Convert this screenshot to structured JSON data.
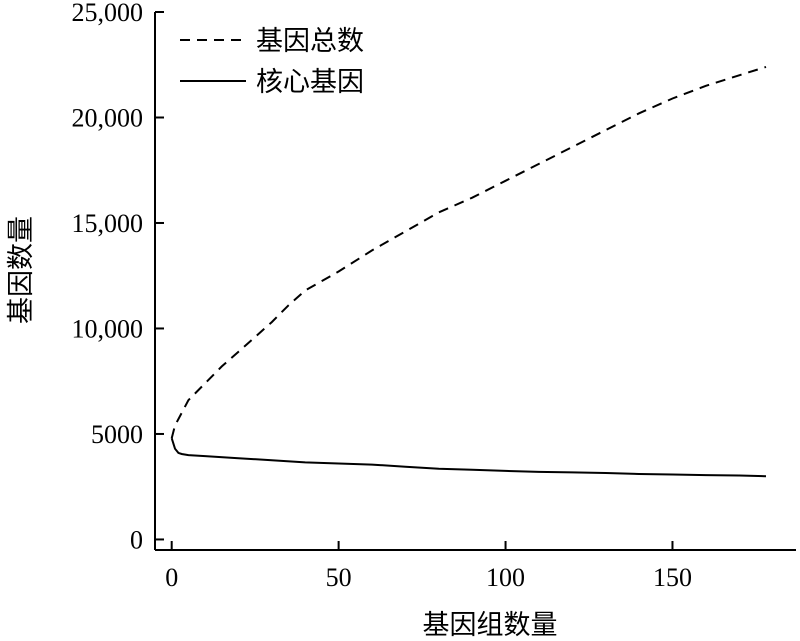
{
  "chart_data": {
    "type": "line",
    "title": "",
    "xlabel": "基因组数量",
    "ylabel": "基因数量",
    "xlim": [
      -5,
      187
    ],
    "ylim": [
      -500,
      25000
    ],
    "x_ticks": [
      0,
      50,
      100,
      150
    ],
    "x_tick_labels": [
      "0",
      "50",
      "100",
      "150"
    ],
    "y_ticks": [
      0,
      5000,
      10000,
      15000,
      20000,
      25000
    ],
    "y_tick_labels": [
      "0",
      "5000",
      "10,000",
      "15,000",
      "20,000",
      "25,000"
    ],
    "grid": false,
    "legend_position": "top-left",
    "series": [
      {
        "name": "基因总数",
        "style": "dashed",
        "color": "#000000",
        "x": [
          0,
          1,
          3,
          5,
          10,
          15,
          20,
          25,
          30,
          35,
          40,
          50,
          60,
          70,
          80,
          90,
          100,
          110,
          120,
          130,
          140,
          150,
          160,
          170,
          178
        ],
        "y": [
          4800,
          5400,
          6000,
          6600,
          7400,
          8200,
          8900,
          9600,
          10300,
          11100,
          11800,
          12700,
          13700,
          14600,
          15500,
          16200,
          17000,
          17800,
          18600,
          19400,
          20200,
          20900,
          21500,
          22000,
          22400
        ]
      },
      {
        "name": "核心基因",
        "style": "solid",
        "color": "#000000",
        "x": [
          0,
          1,
          2,
          3,
          5,
          10,
          20,
          30,
          40,
          50,
          60,
          70,
          80,
          90,
          100,
          110,
          120,
          130,
          140,
          150,
          160,
          170,
          178
        ],
        "y": [
          4800,
          4300,
          4100,
          4050,
          4000,
          3950,
          3850,
          3750,
          3650,
          3600,
          3550,
          3450,
          3350,
          3300,
          3250,
          3200,
          3180,
          3150,
          3100,
          3080,
          3050,
          3030,
          3000
        ]
      }
    ]
  }
}
